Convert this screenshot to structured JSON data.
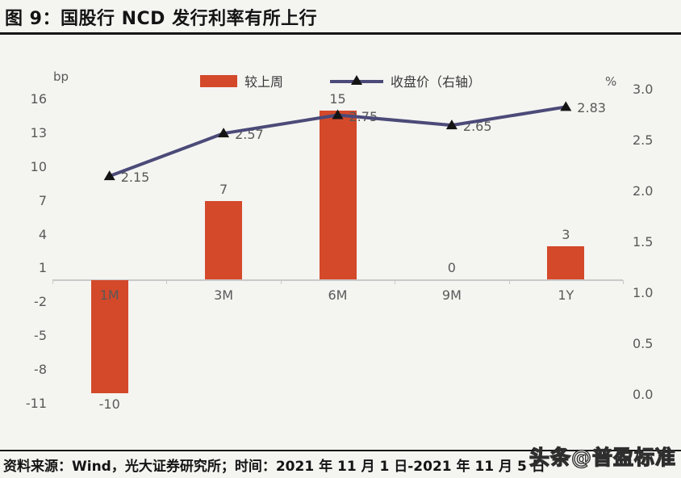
{
  "title": "图 9：国股行 NCD 发行利率有所上行",
  "footer": {
    "source_text": "资料来源：Wind，光大证券研究所；时间：2021 年 11 月 1 日-2021 年 11 月 5 日"
  },
  "watermark": {
    "text": "头条@普盈标准"
  },
  "colors": {
    "bar": "#d3492a",
    "line": "#4b4a78",
    "marker": "#141414",
    "axis_text": "#595959",
    "heading_text": "#141414",
    "baseline": "#c9c9c9",
    "background": "#f4f4f1"
  },
  "chart_data": {
    "type": "combo-bar-line",
    "categories": [
      "1M",
      "3M",
      "6M",
      "9M",
      "1Y"
    ],
    "series": [
      {
        "name": "较上周",
        "type": "bar",
        "axis": "left",
        "unit": "bp",
        "values": [
          -10,
          7,
          15,
          0,
          3
        ],
        "color": "#d3492a"
      },
      {
        "name": "收盘价（右轴）",
        "type": "line",
        "axis": "right",
        "unit": "%",
        "values": [
          2.15,
          2.57,
          2.75,
          2.65,
          2.83
        ],
        "color": "#4b4a78"
      }
    ],
    "left_axis": {
      "label": "bp",
      "ticks": [
        16,
        13,
        10,
        7,
        4,
        1,
        -2,
        -5,
        -8,
        -11
      ],
      "min": -11,
      "max": 16,
      "step": 3
    },
    "right_axis": {
      "label": "%",
      "ticks": [
        "3.0",
        "2.5",
        "2.0",
        "1.5",
        "1.0",
        "0.5",
        "0.0"
      ],
      "min": 0.0,
      "max": 3.0,
      "step": 0.5
    },
    "legend": [
      {
        "label": "较上周",
        "marker": "bar-swatch"
      },
      {
        "label": "收盘价（右轴）",
        "marker": "line-triangle"
      }
    ],
    "grid": false,
    "legend_position": "top-center"
  }
}
